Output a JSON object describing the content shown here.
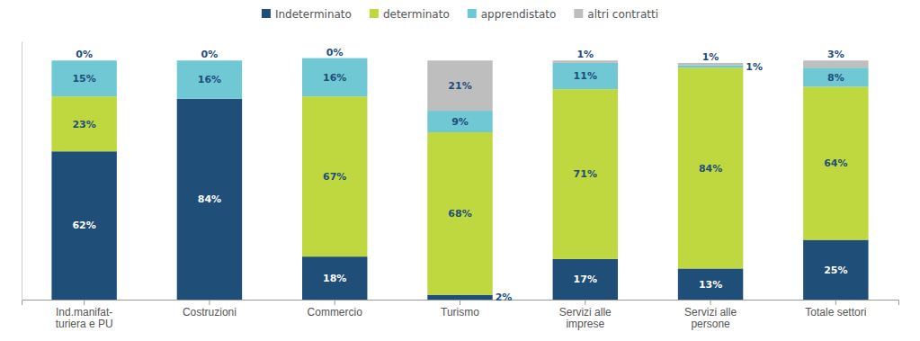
{
  "chart_data": {
    "type": "bar",
    "stacked": true,
    "categories": [
      "Ind.manifat-\nturiera e PU",
      "Costruzioni",
      "Commercio",
      "Turismo",
      "Servizi alle\nimprese",
      "Servizi alle\npersone",
      "Totale settori"
    ],
    "series": [
      {
        "name": "Indeterminato",
        "color": "#1F4E79",
        "values": [
          62,
          84,
          18,
          2,
          17,
          13,
          25
        ],
        "value_labels": [
          "62%",
          "84%",
          "18%",
          "2%",
          "17%",
          "13%",
          "25%"
        ]
      },
      {
        "name": "determinato",
        "color": "#C0D840",
        "values": [
          23,
          0,
          67,
          68,
          71,
          84,
          64
        ],
        "value_labels": [
          "23%",
          null,
          "67%",
          "68%",
          "71%",
          "84%",
          "64%"
        ]
      },
      {
        "name": "apprendistato",
        "color": "#70C8D4",
        "values": [
          15,
          16,
          16,
          9,
          11,
          1,
          8
        ],
        "value_labels": [
          "15%",
          "16%",
          "16%",
          "9%",
          "11%",
          "1%",
          "8%"
        ]
      },
      {
        "name": "altri contratti",
        "color": "#BEBEBE",
        "values": [
          0,
          0,
          0,
          21,
          1,
          1,
          3
        ],
        "value_labels": [
          "0%",
          "0%",
          "0%",
          "21%",
          "1%",
          "1%",
          "3%"
        ]
      }
    ],
    "ylim": [
      0,
      108
    ],
    "grid": false,
    "legend": "top",
    "data_labels": true,
    "tick_labels": "x"
  }
}
